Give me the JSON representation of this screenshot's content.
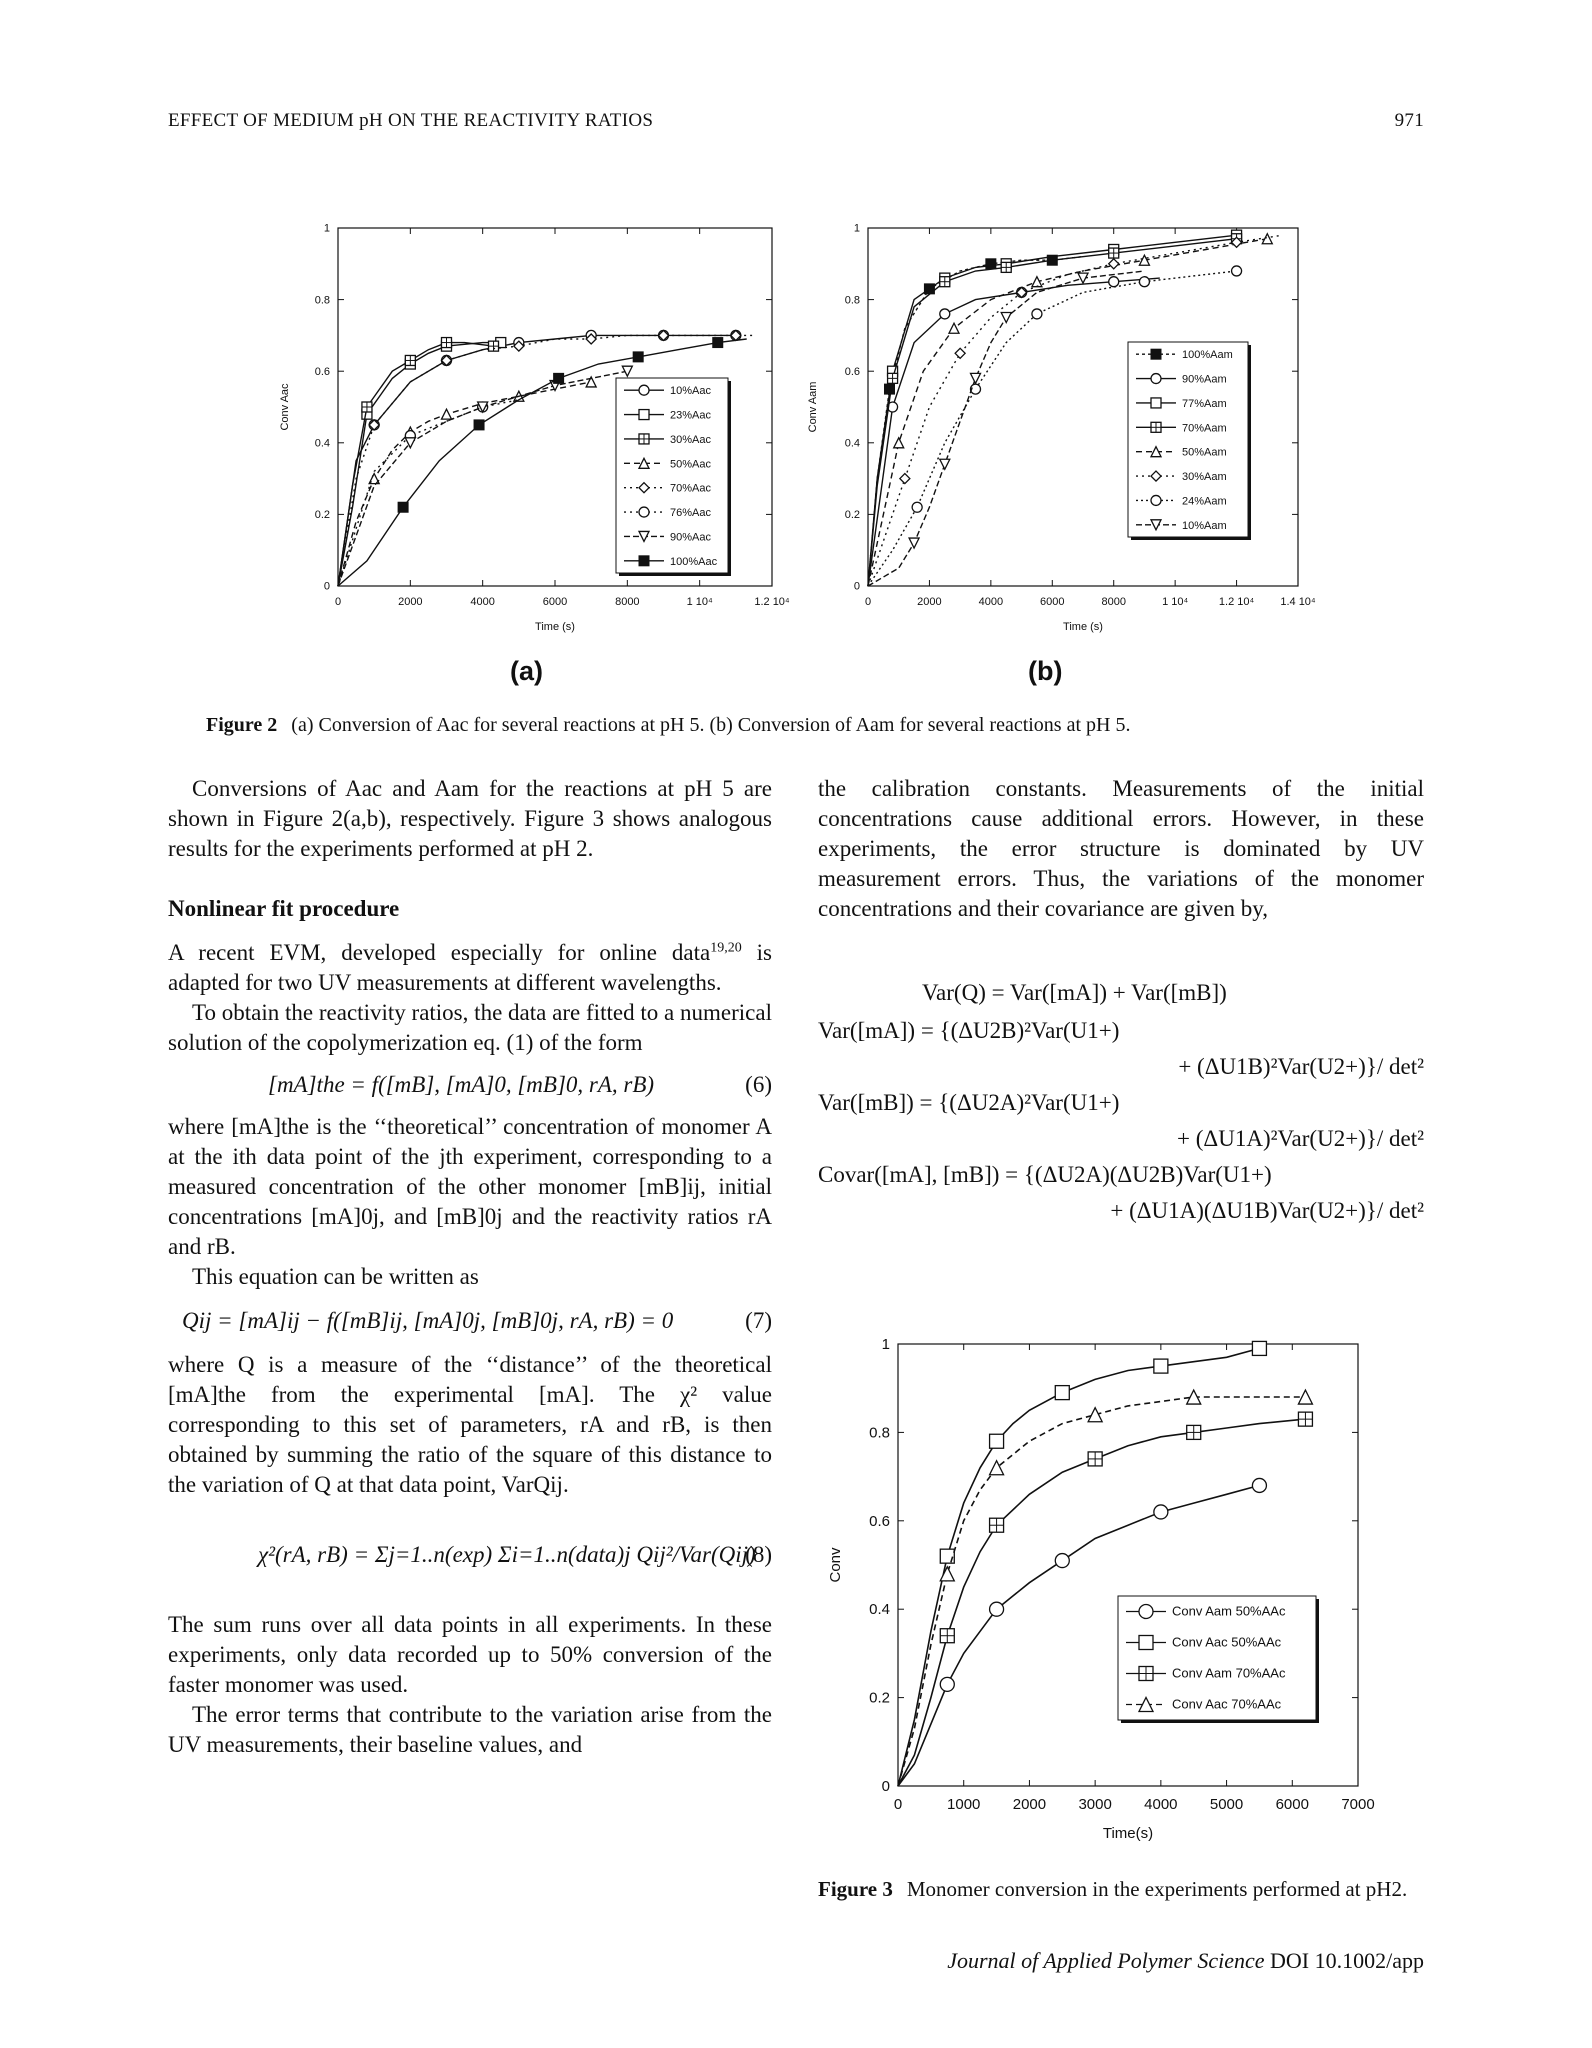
{
  "header": {
    "running_title": "EFFECT OF MEDIUM pH ON THE REACTIVITY RATIOS",
    "page_number": "971"
  },
  "figure2": {
    "caption_label": "Figure 2",
    "caption_text": "(a) Conversion of Aac for several reactions at pH 5. (b) Conversion of Aam for several reactions at pH 5.",
    "panel_a_label": "(a)",
    "panel_b_label": "(b)"
  },
  "figure3": {
    "caption_label": "Figure 3",
    "caption_text": "Monomer conversion in the experiments performed at pH2."
  },
  "chart_data": [
    {
      "type": "line",
      "panel": "(a)",
      "xlabel": "Time (s)",
      "ylabel": "Conv Aac",
      "xlim": [
        0,
        12000
      ],
      "ylim": [
        0,
        1
      ],
      "xticks": [
        "0",
        "2000",
        "4000",
        "6000",
        "8000",
        "1 10⁴",
        "1.2 10⁴"
      ],
      "yticks": [
        "0",
        "0.2",
        "0.4",
        "0.6",
        "0.8",
        "1"
      ],
      "legend_position": "bottom-right",
      "series": [
        {
          "name": "10%Aac",
          "x": [
            0,
            500,
            1000,
            2000,
            3000,
            4000,
            5000,
            6000,
            7000,
            8000,
            9000,
            10000,
            11000
          ],
          "y": [
            0,
            0.35,
            0.45,
            0.57,
            0.63,
            0.66,
            0.68,
            0.69,
            0.7,
            0.7,
            0.7,
            0.7,
            0.7
          ]
        },
        {
          "name": "23%Aac",
          "x": [
            0,
            400,
            800,
            1500,
            2000,
            2500,
            3000,
            4000,
            4500
          ],
          "y": [
            0,
            0.22,
            0.48,
            0.58,
            0.62,
            0.65,
            0.67,
            0.68,
            0.68
          ]
        },
        {
          "name": "30%Aac",
          "x": [
            0,
            400,
            800,
            1500,
            2000,
            2500,
            3000,
            3500,
            4300
          ],
          "y": [
            0,
            0.28,
            0.5,
            0.6,
            0.63,
            0.66,
            0.68,
            0.68,
            0.67
          ]
        },
        {
          "name": "50%Aac",
          "x": [
            0,
            500,
            1000,
            1500,
            2000,
            2500,
            3000,
            4000,
            5000,
            6000,
            7000
          ],
          "y": [
            0,
            0.18,
            0.3,
            0.38,
            0.43,
            0.46,
            0.48,
            0.51,
            0.53,
            0.55,
            0.57
          ]
        },
        {
          "name": "70%Aac",
          "x": [
            0,
            500,
            1000,
            2000,
            3000,
            4000,
            5000,
            6000,
            7000,
            8000,
            9000,
            10000,
            11000,
            11500
          ],
          "y": [
            0,
            0.3,
            0.45,
            0.57,
            0.63,
            0.66,
            0.67,
            0.69,
            0.69,
            0.7,
            0.7,
            0.7,
            0.7,
            0.7
          ]
        },
        {
          "name": "76%Aac",
          "x": [
            0,
            1000,
            2000,
            3000,
            4000,
            5000
          ],
          "y": [
            0,
            0.32,
            0.42,
            0.46,
            0.5,
            0.52
          ]
        },
        {
          "name": "90%Aac",
          "x": [
            0,
            1000,
            2000,
            3000,
            4000,
            5000,
            6000,
            7000,
            8000
          ],
          "y": [
            0,
            0.28,
            0.4,
            0.46,
            0.5,
            0.53,
            0.56,
            0.58,
            0.6
          ]
        },
        {
          "name": "100%Aac",
          "x": [
            0,
            800,
            1800,
            2800,
            3900,
            5000,
            6100,
            7200,
            8300,
            9400,
            10500,
            11300
          ],
          "y": [
            0,
            0.07,
            0.22,
            0.35,
            0.45,
            0.52,
            0.58,
            0.62,
            0.64,
            0.66,
            0.68,
            0.69
          ]
        }
      ]
    },
    {
      "type": "line",
      "panel": "(b)",
      "xlabel": "Time (s)",
      "ylabel": "Conv Aam",
      "xlim": [
        0,
        14000
      ],
      "ylim": [
        0,
        1
      ],
      "xticks": [
        "0",
        "2000",
        "4000",
        "6000",
        "8000",
        "1 10⁴",
        "1.2 10⁴",
        "1.4 10⁴"
      ],
      "yticks": [
        "0",
        "0.2",
        "0.4",
        "0.6",
        "0.8",
        "1"
      ],
      "legend_position": "right",
      "series": [
        {
          "name": "100%Aam",
          "x": [
            0,
            300,
            700,
            1200,
            2000,
            3000,
            4000,
            5000,
            6000,
            7000
          ],
          "y": [
            0,
            0.3,
            0.55,
            0.72,
            0.83,
            0.88,
            0.9,
            0.91,
            0.91,
            0.92
          ]
        },
        {
          "name": "90%Aam",
          "x": [
            0,
            400,
            800,
            1500,
            2500,
            3500,
            5000,
            6500,
            8000,
            9500
          ],
          "y": [
            0,
            0.25,
            0.5,
            0.68,
            0.76,
            0.8,
            0.82,
            0.84,
            0.85,
            0.86
          ]
        },
        {
          "name": "77%Aam",
          "x": [
            0,
            300,
            800,
            1500,
            2500,
            3500,
            4500,
            6000,
            8000,
            10000,
            12000
          ],
          "y": [
            0,
            0.3,
            0.6,
            0.8,
            0.86,
            0.89,
            0.9,
            0.92,
            0.94,
            0.96,
            0.98
          ]
        },
        {
          "name": "70%Aam",
          "x": [
            0,
            300,
            800,
            1500,
            2500,
            3500,
            4500,
            6000,
            8000,
            10000,
            12000
          ],
          "y": [
            0,
            0.28,
            0.58,
            0.78,
            0.85,
            0.88,
            0.89,
            0.91,
            0.93,
            0.95,
            0.97
          ]
        },
        {
          "name": "50%Aam",
          "x": [
            0,
            500,
            1000,
            1800,
            2800,
            4000,
            5500,
            7000,
            9000,
            11000,
            13000
          ],
          "y": [
            0,
            0.2,
            0.4,
            0.6,
            0.72,
            0.8,
            0.85,
            0.88,
            0.91,
            0.94,
            0.97
          ]
        },
        {
          "name": "30%Aam",
          "x": [
            0,
            600,
            1200,
            2000,
            3000,
            4000,
            5000,
            6500,
            8000,
            10000,
            12000,
            13500
          ],
          "y": [
            0,
            0.15,
            0.3,
            0.5,
            0.65,
            0.75,
            0.82,
            0.87,
            0.9,
            0.93,
            0.96,
            0.98
          ]
        },
        {
          "name": "24%Aam",
          "x": [
            0,
            800,
            1600,
            2500,
            3500,
            4500,
            5500,
            7000,
            9000,
            11000,
            12000
          ],
          "y": [
            0,
            0.1,
            0.22,
            0.4,
            0.55,
            0.68,
            0.76,
            0.82,
            0.85,
            0.87,
            0.88
          ]
        },
        {
          "name": "10%Aam",
          "x": [
            0,
            1000,
            1500,
            2000,
            2500,
            3000,
            3500,
            4000,
            4500,
            5500,
            7000,
            9000
          ],
          "y": [
            0,
            0.05,
            0.12,
            0.22,
            0.34,
            0.46,
            0.58,
            0.68,
            0.75,
            0.82,
            0.86,
            0.88
          ]
        }
      ]
    },
    {
      "type": "line",
      "panel": "Figure 3",
      "xlabel": "Time(s)",
      "ylabel": "Conv",
      "xlim": [
        0,
        7000
      ],
      "ylim": [
        0,
        1
      ],
      "xticks": [
        "0",
        "1000",
        "2000",
        "3000",
        "4000",
        "5000",
        "6000",
        "7000"
      ],
      "yticks": [
        "0",
        "0.2",
        "0.4",
        "0.6",
        "0.8",
        "1"
      ],
      "legend_position": "bottom-right",
      "series": [
        {
          "name": "Conv Aam 50%AAc",
          "x": [
            0,
            250,
            500,
            750,
            1000,
            1250,
            1500,
            1750,
            2000,
            2500,
            3000,
            3500,
            4000,
            4500,
            5000,
            5500
          ],
          "y": [
            0,
            0.05,
            0.14,
            0.23,
            0.3,
            0.35,
            0.4,
            0.43,
            0.46,
            0.51,
            0.56,
            0.59,
            0.62,
            0.64,
            0.66,
            0.68
          ]
        },
        {
          "name": "Conv Aac 50%AAc",
          "x": [
            0,
            250,
            500,
            750,
            1000,
            1250,
            1500,
            1750,
            2000,
            2500,
            3000,
            3500,
            4000,
            4500,
            5000,
            5500
          ],
          "y": [
            0,
            0.15,
            0.35,
            0.52,
            0.64,
            0.72,
            0.78,
            0.82,
            0.85,
            0.89,
            0.92,
            0.94,
            0.95,
            0.96,
            0.97,
            0.99
          ]
        },
        {
          "name": "Conv Aam 70%AAc",
          "x": [
            0,
            250,
            500,
            750,
            1000,
            1250,
            1500,
            2000,
            2500,
            3000,
            3500,
            4000,
            4500,
            5000,
            5500,
            6200
          ],
          "y": [
            0,
            0.07,
            0.2,
            0.34,
            0.45,
            0.53,
            0.59,
            0.66,
            0.71,
            0.74,
            0.77,
            0.79,
            0.8,
            0.81,
            0.82,
            0.83
          ]
        },
        {
          "name": "Conv Aac 70%AAc",
          "x": [
            0,
            250,
            500,
            750,
            1000,
            1250,
            1500,
            2000,
            2500,
            3000,
            3500,
            4000,
            4500,
            5000,
            5500,
            6200
          ],
          "y": [
            0,
            0.13,
            0.32,
            0.48,
            0.6,
            0.67,
            0.72,
            0.78,
            0.82,
            0.84,
            0.86,
            0.87,
            0.88,
            0.88,
            0.88,
            0.88
          ]
        }
      ]
    }
  ],
  "left_column": {
    "p1": "Conversions of Aac and Aam for the reactions at pH 5 are shown in Figure 2(a,b), respectively. Figure 3 shows analogous results for the experiments performed at pH 2.",
    "section_heading": "Nonlinear fit procedure",
    "p2_a": "A recent EVM, developed especially for online data",
    "p2_sup": "19,20",
    "p2_b": " is adapted for two UV measurements at different wavelengths.",
    "p3": "To obtain the reactivity ratios, the data are fitted to a numerical solution of the copolymerization eq. (1) of the form",
    "eq6": "[mA]the = f([mB], [mA]0, [mB]0, rA, rB)",
    "eq6_no": "(6)",
    "p4": "where [mA]the is the ‘‘theoretical’’ concentration of monomer A at the ith data point of the jth experiment, corresponding to a measured concentration of the other monomer [mB]ij, initial concentrations [mA]0j, and [mB]0j and the reactivity ratios rA and rB.",
    "p5": "This equation can be written as",
    "eq7": "Qij = [mA]ij − f([mB]ij, [mA]0j, [mB]0j, rA, rB) = 0",
    "eq7_no": "(7)",
    "p6": "where Q is a measure of the ‘‘distance’’ of the theoretical [mA]the from the experimental [mA]. The χ² value corresponding to this set of parameters, rA and rB, is then obtained by summing the ratio of the square of this distance to the variation of Q at that data point, VarQij.",
    "eq8": "χ²(rA, rB) = Σj=1..n(exp) Σi=1..n(data)j Qij²/Var(Qij)",
    "eq8_no": "(8)",
    "p7": "The sum runs over all data points in all experiments. In these experiments, only data recorded up to 50% conversion of the faster monomer was used.",
    "p8": "The error terms that contribute to the variation arise from the UV measurements, their baseline values, and"
  },
  "right_column": {
    "p1": "the calibration constants. Measurements of the initial concentrations cause additional errors. However, in these experiments, the error structure is dominated by UV measurement errors. Thus, the variations of the monomer concentrations and their covariance are given by,",
    "eq_var_q": "Var(Q) = Var([mA]) + Var([mB])",
    "eq_var_ma_1": "Var([mA]) = {(ΔU2B)²Var(U1+)",
    "eq_var_ma_2": "+ (ΔU1B)²Var(U2+)}/ det²",
    "eq_var_mb_1": "Var([mB]) = {(ΔU2A)²Var(U1+)",
    "eq_var_mb_2": "+ (ΔU1A)²Var(U2+)}/ det²",
    "eq_cov_1": "Covar([mA], [mB]) = {(ΔU2A)(ΔU2B)Var(U1+)",
    "eq_cov_2": "+ (ΔU1A)(ΔU1B)Var(U2+)}/ det²"
  },
  "footer": {
    "journal": "Journal of Applied Polymer Science",
    "doi": "DOI 10.1002/app"
  }
}
